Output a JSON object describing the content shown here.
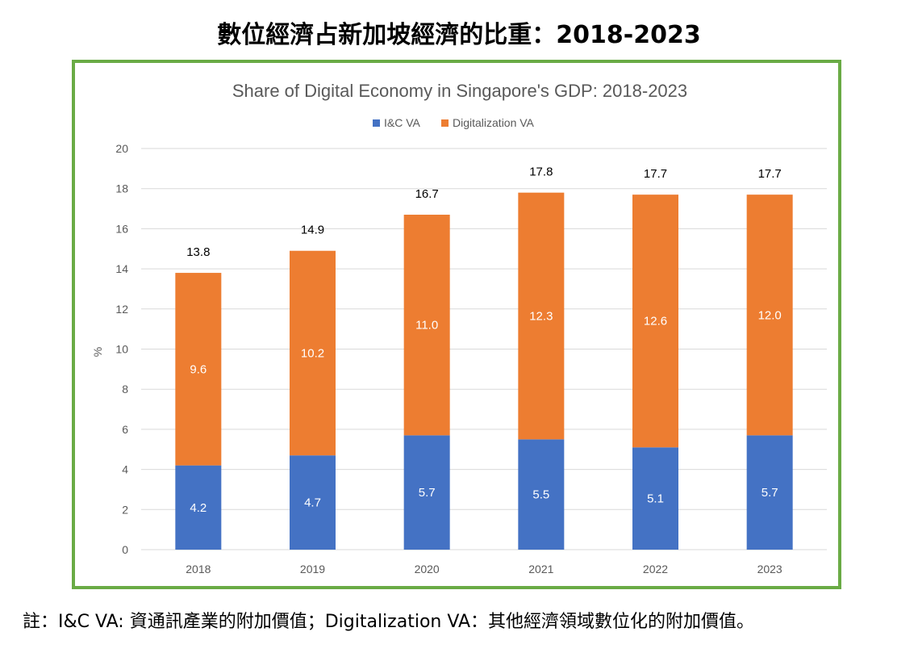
{
  "page": {
    "title": "數位經濟占新加坡經濟的比重：2018-2023",
    "footnote": "註：I&C VA:  資通訊產業的附加價值；Digitalization VA：其他經濟領域數位化的附加價值。"
  },
  "colors": {
    "frame": "#6aab45",
    "ic": "#4472c4",
    "digital": "#ed7d31",
    "grid": "#d9d9d9",
    "axis_text": "#595959"
  },
  "chart_data": {
    "type": "bar",
    "stacked": true,
    "title": "Share of Digital Economy in Singapore's GDP: 2018-2023",
    "xlabel": "",
    "ylabel": "%",
    "ylim": [
      0,
      20
    ],
    "yticks": [
      0,
      2,
      4,
      6,
      8,
      10,
      12,
      14,
      16,
      18,
      20
    ],
    "grid": true,
    "legend_position": "top-center",
    "categories": [
      "2018",
      "2019",
      "2020",
      "2021",
      "2022",
      "2023"
    ],
    "series": [
      {
        "name": "I&C VA",
        "color": "#4472c4",
        "values": [
          4.2,
          4.7,
          5.7,
          5.5,
          5.1,
          5.7
        ],
        "labels": [
          "4.2",
          "4.7",
          "5.7",
          "5.5",
          "5.1",
          "5.7"
        ]
      },
      {
        "name": "Digitalization VA",
        "color": "#ed7d31",
        "values": [
          9.6,
          10.2,
          11.0,
          12.3,
          12.6,
          12.0
        ],
        "labels": [
          "9.6",
          "10.2",
          "11.0",
          "12.3",
          "12.6",
          "12.0"
        ]
      }
    ],
    "totals": [
      "13.8",
      "14.9",
      "16.7",
      "17.8",
      "17.7",
      "17.7"
    ]
  }
}
